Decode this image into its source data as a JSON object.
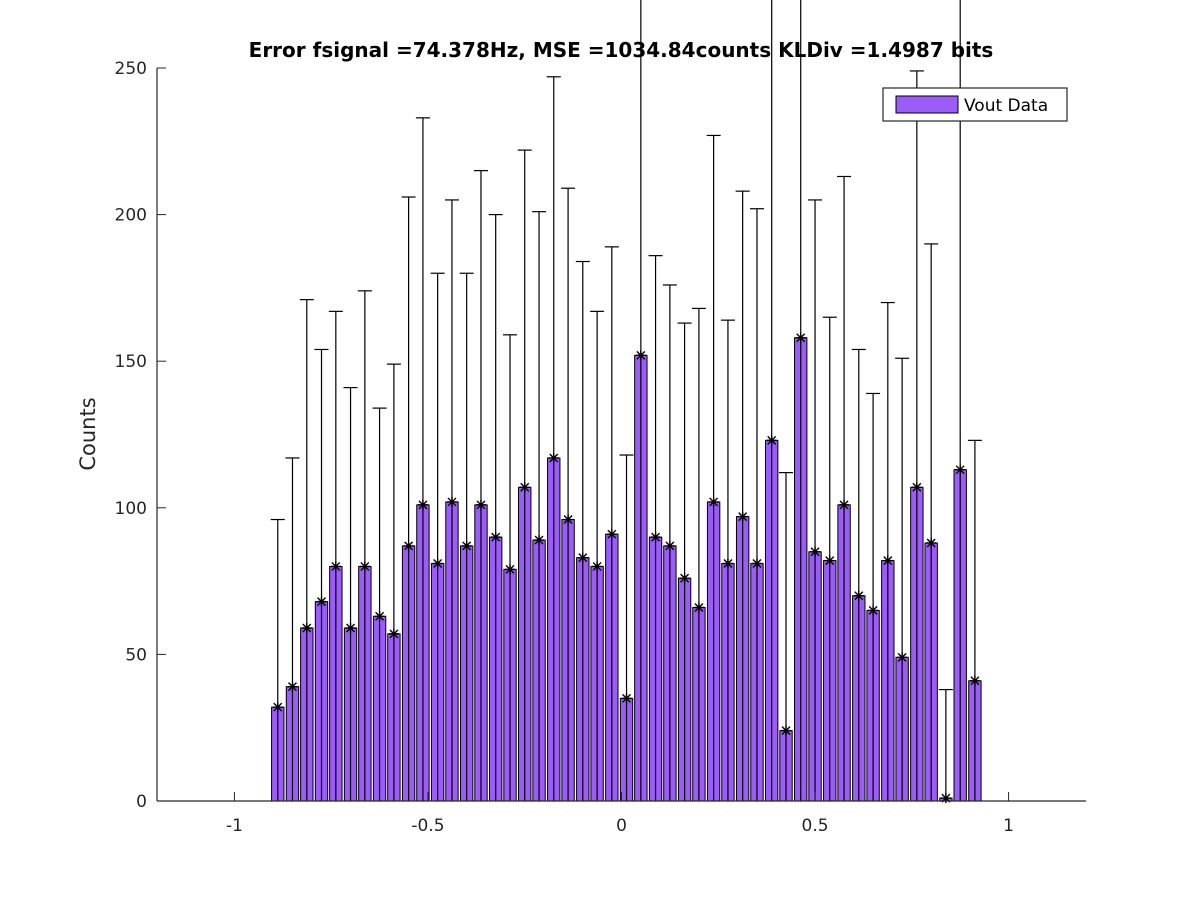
{
  "chart_data": {
    "type": "bar",
    "title": "Error fsignal =74.378Hz, MSE =1034.84counts KLDiv =1.4987 bits",
    "xlabel": "",
    "ylabel": "Counts",
    "xlim": [
      -1.2,
      1.2
    ],
    "ylim": [
      0,
      250
    ],
    "xticks": [
      -1,
      -0.5,
      0,
      0.5,
      1
    ],
    "xtick_labels": [
      "-1",
      "-0.5",
      "0",
      "0.5",
      "1"
    ],
    "yticks": [
      0,
      50,
      100,
      150,
      200,
      250
    ],
    "ytick_labels": [
      "0",
      "50",
      "100",
      "150",
      "200",
      "250"
    ],
    "grid": false,
    "legend": {
      "position": "top-right",
      "entries": [
        "Vout Data"
      ]
    },
    "bar_color": "#9b5cf7",
    "bar_width": 0.032,
    "x": [
      -0.888,
      -0.85,
      -0.813,
      -0.775,
      -0.738,
      -0.7,
      -0.663,
      -0.625,
      -0.588,
      -0.55,
      -0.513,
      -0.475,
      -0.438,
      -0.4,
      -0.363,
      -0.325,
      -0.288,
      -0.25,
      -0.213,
      -0.175,
      -0.138,
      -0.1,
      -0.063,
      -0.025,
      0.013,
      0.05,
      0.088,
      0.125,
      0.163,
      0.2,
      0.238,
      0.275,
      0.313,
      0.35,
      0.388,
      0.425,
      0.463,
      0.5,
      0.538,
      0.575,
      0.613,
      0.65,
      0.688,
      0.725,
      0.763,
      0.8,
      0.838,
      0.875,
      0.913
    ],
    "values": [
      32,
      39,
      59,
      68,
      80,
      59,
      80,
      63,
      57,
      87,
      101,
      81,
      102,
      87,
      101,
      90,
      79,
      107,
      89,
      117,
      96,
      83,
      80,
      91,
      35,
      152,
      90,
      87,
      76,
      66,
      102,
      81,
      97,
      81,
      123,
      24,
      158,
      85,
      82,
      101,
      70,
      65,
      82,
      49,
      107,
      88,
      1,
      113,
      41
    ],
    "error_upper": [
      64,
      78,
      112,
      86,
      87,
      82,
      94,
      71,
      92,
      119,
      132,
      99,
      103,
      93,
      114,
      110,
      80,
      115,
      112,
      130,
      113,
      101,
      87,
      98,
      83,
      195,
      96,
      89,
      87,
      102,
      125,
      83,
      111,
      121,
      153,
      88,
      217,
      120,
      83,
      112,
      84,
      74,
      88,
      102,
      142,
      102,
      37,
      226,
      82
    ],
    "error_lower": [
      32,
      39,
      59,
      68,
      80,
      59,
      80,
      63,
      57,
      87,
      101,
      81,
      102,
      87,
      101,
      90,
      79,
      107,
      89,
      117,
      96,
      83,
      80,
      91,
      35,
      152,
      90,
      87,
      76,
      66,
      102,
      81,
      97,
      81,
      123,
      24,
      158,
      85,
      82,
      101,
      70,
      65,
      82,
      49,
      107,
      88,
      1,
      113,
      41
    ]
  }
}
